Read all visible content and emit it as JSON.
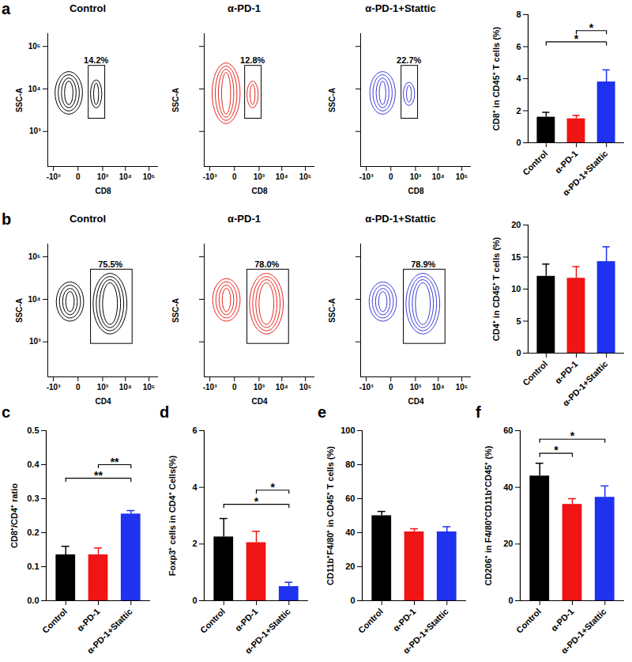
{
  "chart_data": [
    {
      "type": "contour",
      "panel_label": "a",
      "title": "Control",
      "x_label": "CD8",
      "y_label": "SSC-A",
      "log": true,
      "color": "#000000",
      "xlim": [
        -1800,
        250000
      ],
      "ylim": [
        150,
        200000
      ],
      "xticks": [
        {
          "value": -1000,
          "label": "-10³"
        },
        0,
        {
          "value": 1000,
          "label": "10³"
        },
        {
          "value": 10000,
          "label": "10⁴"
        },
        {
          "value": 100000,
          "label": "10⁵"
        }
      ],
      "yticks": [
        {
          "value": 1000,
          "label": "10³"
        },
        {
          "value": 10000,
          "label": "10⁴"
        },
        {
          "value": 100000,
          "label": "10⁵"
        }
      ],
      "gate": {
        "x": [
          180,
          1300
        ],
        "y": [
          2000,
          35000
        ],
        "label": "14.2%"
      },
      "populations": [
        {
          "x": [
            -800,
            60
          ],
          "y": [
            2500,
            25000
          ]
        },
        {
          "x": [
            250,
            950
          ],
          "y": [
            3500,
            16000
          ]
        }
      ]
    },
    {
      "type": "contour",
      "title": "α-PD-1",
      "x_label": "CD8",
      "y_label": "SSC-A",
      "log": true,
      "tick_labels": "x",
      "color": "#e8261f",
      "xlim": [
        -1800,
        250000
      ],
      "ylim": [
        150,
        200000
      ],
      "xticks": [
        {
          "value": -1000,
          "label": "-10³"
        },
        0,
        {
          "value": 1000,
          "label": "10³"
        },
        {
          "value": 10000,
          "label": "10⁴"
        },
        {
          "value": 100000,
          "label": "10⁵"
        }
      ],
      "yticks": [
        {
          "value": 1000,
          "label": "10³"
        },
        {
          "value": 10000,
          "label": "10⁴"
        },
        {
          "value": 100000,
          "label": "10⁵"
        }
      ],
      "gate": {
        "x": [
          180,
          1300
        ],
        "y": [
          2000,
          35000
        ],
        "label": "12.8%"
      },
      "populations": [
        {
          "x": [
            -750,
            80
          ],
          "y": [
            1500,
            40000
          ]
        },
        {
          "x": [
            250,
            950
          ],
          "y": [
            3500,
            15000
          ]
        }
      ]
    },
    {
      "type": "contour",
      "title": "α-PD-1+Stattic",
      "x_label": "CD8",
      "y_label": "SSC-A",
      "log": true,
      "tick_labels": "x",
      "color": "#3d3dd8",
      "xlim": [
        -1800,
        250000
      ],
      "ylim": [
        150,
        200000
      ],
      "xticks": [
        {
          "value": -1000,
          "label": "-10³"
        },
        0,
        {
          "value": 1000,
          "label": "10³"
        },
        {
          "value": 10000,
          "label": "10⁴"
        },
        {
          "value": 100000,
          "label": "10⁵"
        }
      ],
      "yticks": [
        {
          "value": 1000,
          "label": "10³"
        },
        {
          "value": 10000,
          "label": "10⁴"
        },
        {
          "value": 100000,
          "label": "10⁵"
        }
      ],
      "gate": {
        "x": [
          180,
          1300
        ],
        "y": [
          2000,
          35000
        ],
        "label": "22.7%"
      },
      "populations": [
        {
          "x": [
            -650,
            60
          ],
          "y": [
            2500,
            25000
          ]
        },
        {
          "x": [
            250,
            950
          ],
          "y": [
            4000,
            14000
          ]
        }
      ]
    },
    {
      "type": "bar",
      "y_label": "CD8⁺ in CD45⁺ T cells (%)",
      "categories": [
        "Control",
        "α-PD-1",
        "α-PD-1+Stattic"
      ],
      "values": [
        1.6,
        1.5,
        3.8
      ],
      "errors": [
        0.3,
        0.2,
        0.75
      ],
      "colors": [
        "#000000",
        "#f01414",
        "#1e32f0"
      ],
      "ylim": [
        0,
        8
      ],
      "yticks": [
        0,
        2,
        4,
        6,
        8
      ],
      "significance": [
        {
          "from": "α-PD-1",
          "to": "α-PD-1+Stattic",
          "y": 7.0,
          "label": "*"
        },
        {
          "from": "Control",
          "to": "α-PD-1+Stattic",
          "y": 6.3,
          "label": "*"
        }
      ]
    },
    {
      "type": "contour",
      "panel_label": "b",
      "title": "Control",
      "x_label": "CD4",
      "y_label": "SSC-A",
      "log": true,
      "color": "#000000",
      "xlim": [
        -1800,
        250000
      ],
      "ylim": [
        150,
        200000
      ],
      "xticks": [
        {
          "value": -1000,
          "label": "-10³"
        },
        0,
        {
          "value": 1000,
          "label": "10³"
        },
        {
          "value": 10000,
          "label": "10⁴"
        },
        {
          "value": 100000,
          "label": "10⁵"
        }
      ],
      "yticks": [
        {
          "value": 1000,
          "label": "10³"
        },
        {
          "value": 10000,
          "label": "10⁴"
        },
        {
          "value": 100000,
          "label": "10⁵"
        }
      ],
      "gate": {
        "x": [
          250,
          20000
        ],
        "y": [
          900,
          50000
        ],
        "label": "75.5%"
      },
      "populations": [
        {
          "x": [
            -700,
            80
          ],
          "y": [
            3000,
            25000
          ]
        },
        {
          "x": [
            350,
            12000
          ],
          "y": [
            1500,
            40000
          ]
        }
      ]
    },
    {
      "type": "contour",
      "title": "α-PD-1",
      "x_label": "CD4",
      "y_label": "SSC-A",
      "log": true,
      "tick_labels": "x",
      "color": "#e8261f",
      "xlim": [
        -1800,
        250000
      ],
      "ylim": [
        150,
        200000
      ],
      "xticks": [
        {
          "value": -1000,
          "label": "-10³"
        },
        0,
        {
          "value": 1000,
          "label": "10³"
        },
        {
          "value": 10000,
          "label": "10⁴"
        },
        {
          "value": 100000,
          "label": "10⁵"
        }
      ],
      "yticks": [
        {
          "value": 1000,
          "label": "10³"
        },
        {
          "value": 10000,
          "label": "10⁴"
        },
        {
          "value": 100000,
          "label": "10⁵"
        }
      ],
      "gate": {
        "x": [
          250,
          20000
        ],
        "y": [
          900,
          50000
        ],
        "label": "78.0%"
      },
      "populations": [
        {
          "x": [
            -700,
            80
          ],
          "y": [
            3000,
            30000
          ]
        },
        {
          "x": [
            350,
            12000
          ],
          "y": [
            1500,
            40000
          ]
        }
      ]
    },
    {
      "type": "contour",
      "title": "α-PD-1+Stattic",
      "x_label": "CD4",
      "y_label": "SSC-A",
      "log": true,
      "tick_labels": "x",
      "color": "#3d3dd8",
      "xlim": [
        -1800,
        250000
      ],
      "ylim": [
        150,
        200000
      ],
      "xticks": [
        {
          "value": -1000,
          "label": "-10³"
        },
        0,
        {
          "value": 1000,
          "label": "10³"
        },
        {
          "value": 10000,
          "label": "10⁴"
        },
        {
          "value": 100000,
          "label": "10⁵"
        }
      ],
      "yticks": [
        {
          "value": 1000,
          "label": "10³"
        },
        {
          "value": 10000,
          "label": "10⁴"
        },
        {
          "value": 100000,
          "label": "10⁵"
        }
      ],
      "gate": {
        "x": [
          250,
          20000
        ],
        "y": [
          900,
          50000
        ],
        "label": "78.9%"
      },
      "populations": [
        {
          "x": [
            -700,
            80
          ],
          "y": [
            3000,
            25000
          ]
        },
        {
          "x": [
            350,
            12000
          ],
          "y": [
            1500,
            40000
          ]
        }
      ]
    },
    {
      "type": "bar",
      "y_label": "CD4⁺ in CD45⁺ T cells (%)",
      "categories": [
        "Control",
        "α-PD-1",
        "α-PD-1+Stattic"
      ],
      "values": [
        12.0,
        11.7,
        14.3
      ],
      "errors": [
        1.9,
        1.8,
        2.3
      ],
      "colors": [
        "#000000",
        "#f01414",
        "#1e32f0"
      ],
      "ylim": [
        0,
        20
      ],
      "yticks": [
        0,
        5,
        10,
        15,
        20
      ],
      "significance": []
    },
    {
      "type": "bar",
      "panel_label": "c",
      "y_label": "CD8⁺/CD4⁺ ratio",
      "categories": [
        "Control",
        "α-PD-1",
        "α-PD-1+Stattic"
      ],
      "values": [
        0.135,
        0.135,
        0.255
      ],
      "errors": [
        0.025,
        0.02,
        0.01
      ],
      "colors": [
        "#000000",
        "#f01414",
        "#1e32f0"
      ],
      "ylim": [
        0,
        0.5
      ],
      "yticks": [
        {
          "value": 0,
          "label": "0.0"
        },
        0.1,
        0.2,
        0.3,
        0.4,
        0.5
      ],
      "significance": [
        {
          "from": "α-PD-1",
          "to": "α-PD-1+Stattic",
          "y": 0.4,
          "label": "**"
        },
        {
          "from": "Control",
          "to": "α-PD-1+Stattic",
          "y": 0.36,
          "label": "**"
        }
      ]
    },
    {
      "type": "bar",
      "panel_label": "d",
      "y_label": "Foxp3⁺ cells in CD4⁺ Cells(%)",
      "categories": [
        "Control",
        "α-PD-1",
        "α-PD-1+Stattic"
      ],
      "values": [
        2.25,
        2.05,
        0.5
      ],
      "errors": [
        0.65,
        0.4,
        0.15
      ],
      "colors": [
        "#000000",
        "#f01414",
        "#1e32f0"
      ],
      "ylim": [
        0,
        6
      ],
      "yticks": [
        0,
        2,
        4,
        6
      ],
      "significance": [
        {
          "from": "α-PD-1",
          "to": "α-PD-1+Stattic",
          "y": 3.9,
          "label": "*"
        },
        {
          "from": "Control",
          "to": "α-PD-1+Stattic",
          "y": 3.4,
          "label": "*"
        }
      ]
    },
    {
      "type": "bar",
      "panel_label": "e",
      "y_label": "CD11b⁺F4/80⁺ in CD45⁺ T cells (%)",
      "categories": [
        "Control",
        "α-PD-1",
        "α-PD-1+Stattic"
      ],
      "values": [
        50,
        40.5,
        40.5
      ],
      "errors": [
        2.5,
        1.8,
        3
      ],
      "colors": [
        "#000000",
        "#f01414",
        "#1e32f0"
      ],
      "ylim": [
        0,
        100
      ],
      "yticks": [
        0,
        20,
        40,
        60,
        80,
        100
      ],
      "significance": []
    },
    {
      "type": "bar",
      "panel_label": "f",
      "y_label": "CD206⁺ in F4/80⁺CD11b⁺CD45⁺ (%)",
      "categories": [
        "Control",
        "α-PD-1",
        "α-PD-1+Stattic"
      ],
      "values": [
        44,
        34,
        36.5
      ],
      "errors": [
        4.5,
        2,
        4
      ],
      "colors": [
        "#000000",
        "#f01414",
        "#1e32f0"
      ],
      "ylim": [
        0,
        60
      ],
      "yticks": [
        0,
        20,
        40,
        60
      ],
      "significance": [
        {
          "from": "Control",
          "to": "α-PD-1",
          "y": 52,
          "label": "*"
        },
        {
          "from": "Control",
          "to": "α-PD-1+Stattic",
          "y": 57,
          "label": "*"
        }
      ]
    }
  ]
}
